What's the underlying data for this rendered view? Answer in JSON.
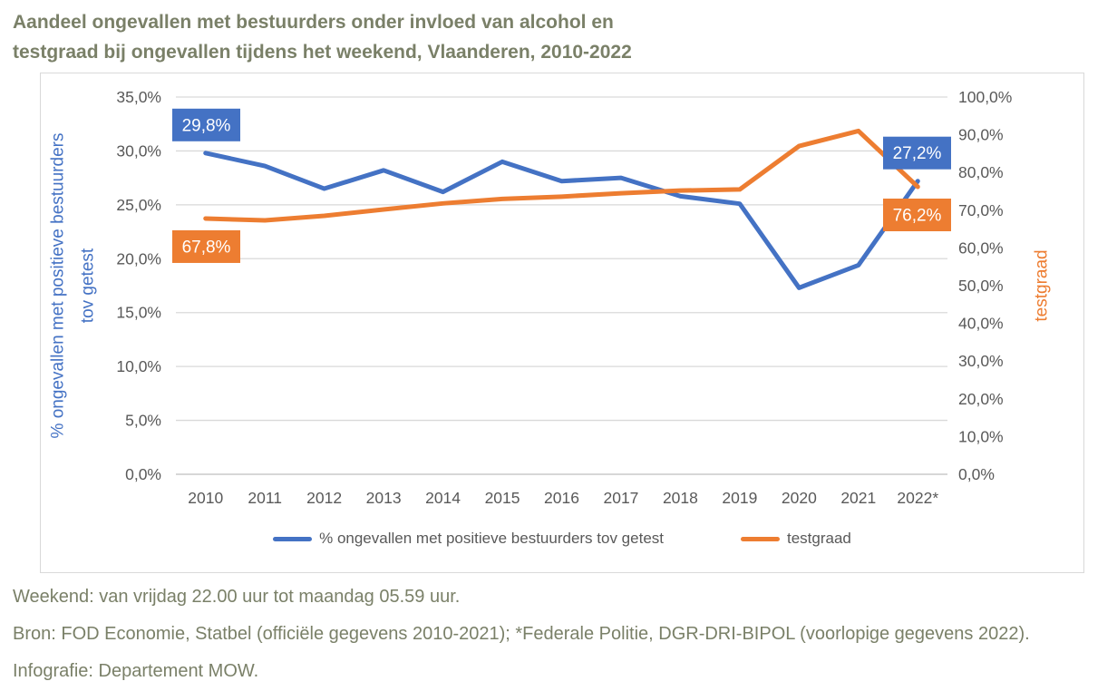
{
  "header": {
    "title_line1": "Aandeel ongevallen met bestuurders onder invloed van alcohol en",
    "title_line2": "testgraad bij ongevallen tijdens het weekend, Vlaanderen, 2010-2022",
    "title_color": "#7A8068"
  },
  "chart_data": {
    "type": "line",
    "title": "Aandeel ongevallen met bestuurders onder invloed van alcohol en testgraad bij ongevallen tijdens het weekend, Vlaanderen, 2010-2022",
    "categories": [
      "2010",
      "2011",
      "2012",
      "2013",
      "2014",
      "2015",
      "2016",
      "2017",
      "2018",
      "2019",
      "2020",
      "2021",
      "2022*"
    ],
    "series": [
      {
        "name": "% ongevallen met positieve bestuurders tov getest",
        "color": "#4472C4",
        "axis": "left",
        "values": [
          29.8,
          28.6,
          26.5,
          28.2,
          26.2,
          29.0,
          27.2,
          27.5,
          25.8,
          25.1,
          17.3,
          19.4,
          27.2
        ]
      },
      {
        "name": "testgraad",
        "color": "#ED7D31",
        "axis": "right",
        "values": [
          67.8,
          67.3,
          68.5,
          70.2,
          71.8,
          73.0,
          73.6,
          74.5,
          75.2,
          75.5,
          87.0,
          91.0,
          76.2
        ]
      }
    ],
    "left_axis": {
      "title": "% ongevallen met positieve bestuurders tov getest",
      "title_lines": [
        "% ongevallen met positieve bestuurders",
        "tov getest"
      ],
      "title_color": "#4472C4",
      "min": 0,
      "max": 35,
      "ticks": [
        {
          "v": 35,
          "label": "35,0%"
        },
        {
          "v": 30,
          "label": "30,0%"
        },
        {
          "v": 25,
          "label": "25,0%"
        },
        {
          "v": 20,
          "label": "20,0%"
        },
        {
          "v": 15,
          "label": "15,0%"
        },
        {
          "v": 10,
          "label": "10,0%"
        },
        {
          "v": 5,
          "label": "5,0%"
        },
        {
          "v": 0,
          "label": "0,0%"
        }
      ]
    },
    "right_axis": {
      "title": "testgraad",
      "title_color": "#ED7D31",
      "min": 0,
      "max": 100,
      "ticks": [
        {
          "v": 100,
          "label": "100,0%"
        },
        {
          "v": 90,
          "label": "90,0%"
        },
        {
          "v": 80,
          "label": "80,0%"
        },
        {
          "v": 70,
          "label": "70,0%"
        },
        {
          "v": 60,
          "label": "60,0%"
        },
        {
          "v": 50,
          "label": "50,0%"
        },
        {
          "v": 40,
          "label": "40,0%"
        },
        {
          "v": 30,
          "label": "30,0%"
        },
        {
          "v": 20,
          "label": "20,0%"
        },
        {
          "v": 10,
          "label": "10,0%"
        },
        {
          "v": 0,
          "label": "0,0%"
        }
      ]
    },
    "data_labels": [
      {
        "series": 0,
        "index": 0,
        "text": "29,8%",
        "placement": "above"
      },
      {
        "series": 1,
        "index": 0,
        "text": "67,8%",
        "placement": "below"
      },
      {
        "series": 0,
        "index": 12,
        "text": "27,2%",
        "placement": "above"
      },
      {
        "series": 1,
        "index": 12,
        "text": "76,2%",
        "placement": "below"
      }
    ],
    "grid": {
      "color": "#D9D9D9",
      "axis_line_color": "#BFBFBF",
      "tick_text_color": "#595959"
    },
    "legend_position": "bottom"
  },
  "footnotes": [
    "Weekend: van vrijdag 22.00 uur tot maandag 05.59 uur.",
    "Bron: FOD Economie, Statbel (officiële gegevens 2010-2021); *Federale Politie, DGR-DRI-BIPOL (voorlopige gegevens 2022).",
    "Infografie: Departement MOW."
  ],
  "footnote_color": "#7A8068"
}
